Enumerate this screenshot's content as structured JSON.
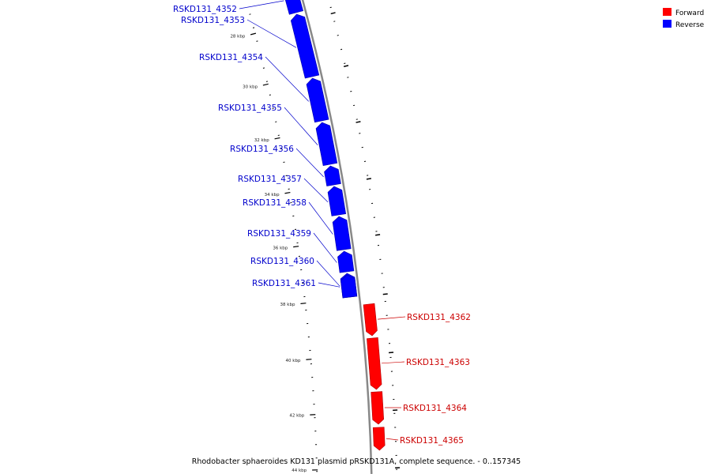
{
  "colors": {
    "forward": "#ff0000",
    "reverse": "#0000ff",
    "backbone": "#888888",
    "forward_label": "#cc0000",
    "reverse_label": "#0000cc",
    "ticks": "#000000"
  },
  "legend": {
    "forward_label": "Forward",
    "reverse_label": "Reverse"
  },
  "caption": "Rhodobacter sphaeroides KD131 plasmid pRSKD131A, complete sequence. - 0..157345",
  "ticks": {
    "unit": "kbp",
    "major_labels": [
      "28 kbp",
      "30 kbp",
      "32 kbp",
      "34 kbp",
      "36 kbp",
      "38 kbp",
      "40 kbp",
      "42 kbp",
      "44 kbp"
    ]
  },
  "features": [
    {
      "name": "RSKD131_4352",
      "strand": "reverse"
    },
    {
      "name": "RSKD131_4353",
      "strand": "reverse"
    },
    {
      "name": "RSKD131_4354",
      "strand": "reverse"
    },
    {
      "name": "RSKD131_4355",
      "strand": "reverse"
    },
    {
      "name": "RSKD131_4356",
      "strand": "reverse"
    },
    {
      "name": "RSKD131_4357",
      "strand": "reverse"
    },
    {
      "name": "RSKD131_4358",
      "strand": "reverse"
    },
    {
      "name": "RSKD131_4359",
      "strand": "reverse"
    },
    {
      "name": "RSKD131_4360",
      "strand": "reverse"
    },
    {
      "name": "RSKD131_4361",
      "strand": "reverse"
    },
    {
      "name": "RSKD131_4362",
      "strand": "forward"
    },
    {
      "name": "RSKD131_4363",
      "strand": "forward"
    },
    {
      "name": "RSKD131_4364",
      "strand": "forward"
    },
    {
      "name": "RSKD131_4365",
      "strand": "forward"
    }
  ]
}
